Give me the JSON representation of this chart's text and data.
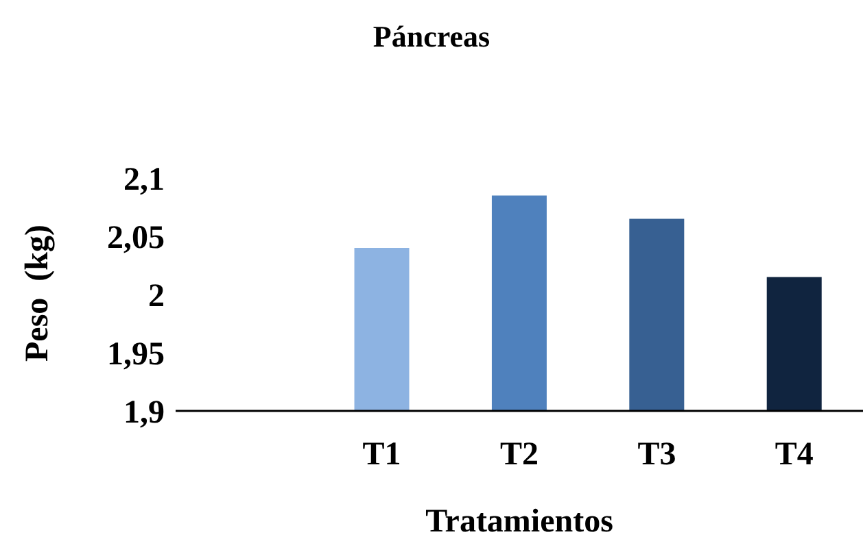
{
  "chart_data": {
    "type": "bar",
    "title": "Páncreas",
    "xlabel": "Tratamientos",
    "ylabel": "Peso  (kg)",
    "categories": [
      null,
      "T1",
      "T2",
      "T3",
      "T4"
    ],
    "values": [
      null,
      2.04,
      2.085,
      2.065,
      2.015
    ],
    "colors": [
      "#8db3e2",
      "#8db3e2",
      "#4f81bd",
      "#376092",
      "#10243f"
    ],
    "ylim": [
      1.9,
      2.1
    ],
    "yticks": [
      {
        "value": 1.9,
        "label": "1,9"
      },
      {
        "value": 1.95,
        "label": "1,95"
      },
      {
        "value": 2,
        "label": "2"
      },
      {
        "value": 2.05,
        "label": "2,05"
      },
      {
        "value": 2.1,
        "label": "2,1"
      }
    ],
    "grid": false
  }
}
